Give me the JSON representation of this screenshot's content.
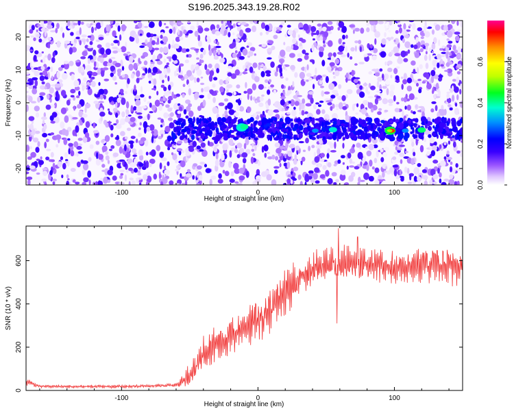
{
  "title": "S196.2025.343.19.28.R02",
  "spectrogram": {
    "xlabel": "Height of straight line (km)",
    "ylabel": "Frequency (Hz)",
    "xlim": [
      -170,
      150
    ],
    "ylim": [
      -25,
      25
    ],
    "xticks": [
      -100,
      0,
      100
    ],
    "yticks": [
      -20,
      -10,
      0,
      10,
      20
    ],
    "colorbar": {
      "label": "Normalized spectral amplitude",
      "range": [
        0.0,
        0.8
      ],
      "ticks": [
        0.0,
        0.2,
        0.4,
        0.6
      ],
      "colormap": [
        "#ffffff",
        "#e8d8ff",
        "#b78bff",
        "#7a2dff",
        "#3b00ff",
        "#0000ff",
        "#00a0ff",
        "#00ffcc",
        "#00ff00",
        "#c8ff00",
        "#ffff00",
        "#ff9900",
        "#ff0000",
        "#ff0080"
      ]
    }
  },
  "chart_data": {
    "type": "line",
    "title": "",
    "xlabel": "Height of straight line (km)",
    "ylabel": "SNR (10 * v/v)",
    "xlim": [
      -170,
      150
    ],
    "ylim": [
      0,
      760
    ],
    "xticks": [
      -100,
      0,
      100
    ],
    "yticks": [
      0,
      200,
      400,
      600
    ],
    "color": "#f03030",
    "envelope": [
      {
        "x": -170,
        "y": 40,
        "amp": 20
      },
      {
        "x": -160,
        "y": 20,
        "amp": 8
      },
      {
        "x": -140,
        "y": 18,
        "amp": 8
      },
      {
        "x": -110,
        "y": 18,
        "amp": 8
      },
      {
        "x": -80,
        "y": 20,
        "amp": 8
      },
      {
        "x": -60,
        "y": 25,
        "amp": 10
      },
      {
        "x": -52,
        "y": 60,
        "amp": 50
      },
      {
        "x": -45,
        "y": 110,
        "amp": 70
      },
      {
        "x": -40,
        "y": 180,
        "amp": 80
      },
      {
        "x": -30,
        "y": 220,
        "amp": 90
      },
      {
        "x": -20,
        "y": 250,
        "amp": 100
      },
      {
        "x": -10,
        "y": 300,
        "amp": 110
      },
      {
        "x": 0,
        "y": 330,
        "amp": 110
      },
      {
        "x": 10,
        "y": 380,
        "amp": 110
      },
      {
        "x": 20,
        "y": 460,
        "amp": 120
      },
      {
        "x": 30,
        "y": 520,
        "amp": 110
      },
      {
        "x": 40,
        "y": 560,
        "amp": 90
      },
      {
        "x": 50,
        "y": 580,
        "amp": 80
      },
      {
        "x": 60,
        "y": 590,
        "amp": 90
      },
      {
        "x": 80,
        "y": 575,
        "amp": 80
      },
      {
        "x": 100,
        "y": 570,
        "amp": 80
      },
      {
        "x": 120,
        "y": 585,
        "amp": 90
      },
      {
        "x": 140,
        "y": 580,
        "amp": 100
      },
      {
        "x": 150,
        "y": 590,
        "amp": 100
      }
    ],
    "peaks": [
      {
        "x": 59,
        "y": 750
      },
      {
        "x": 73,
        "y": 710
      },
      {
        "x": 58,
        "y": 310
      }
    ]
  }
}
